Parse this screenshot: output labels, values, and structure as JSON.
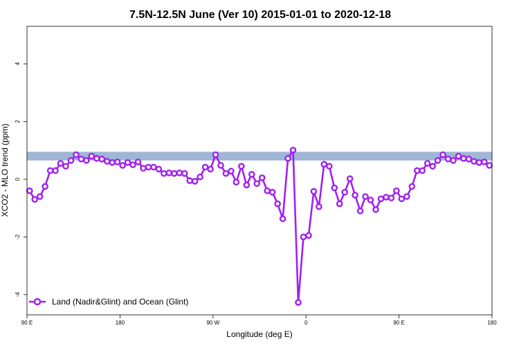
{
  "chart_data": {
    "type": "line",
    "title": "7.5N-12.5N June (Ver 10)   2015-01-01 to 2020-12-18",
    "xlabel": "Longitude (deg E)",
    "ylabel": "XCO2 - MLO trend (ppm)",
    "xlim": [
      90,
      540
    ],
    "ylim": [
      -4.7,
      5.3
    ],
    "x_ticks": [
      {
        "value": 90,
        "label": "90 E"
      },
      {
        "value": 180,
        "label": "180"
      },
      {
        "value": 270,
        "label": "90 W"
      },
      {
        "value": 360,
        "label": "0"
      },
      {
        "value": 450,
        "label": "90 E"
      },
      {
        "value": 540,
        "label": "180"
      }
    ],
    "y_ticks": [
      {
        "value": -4,
        "label": "-4"
      },
      {
        "value": -2,
        "label": "-2"
      },
      {
        "value": 0,
        "label": "0"
      },
      {
        "value": 2,
        "label": "2"
      },
      {
        "value": 4,
        "label": "4"
      }
    ],
    "grid": false,
    "legend_position": "bottom-left",
    "colors": {
      "series": "#a020f0",
      "ocean_band": "#9fb6d6",
      "land": "#f5d36b"
    },
    "land_band": {
      "y_range": [
        0.65,
        0.95
      ],
      "land_segments": []
    },
    "series": [
      {
        "name": "Land (Nadir&Glint) and Ocean (Glint)",
        "x": [
          92.5,
          97.5,
          102.5,
          107.5,
          112.5,
          117.5,
          122.5,
          127.5,
          132.5,
          137.5,
          142.5,
          147.5,
          152.5,
          157.5,
          162.5,
          167.5,
          172.5,
          177.5,
          182.5,
          187.5,
          192.5,
          197.5,
          202.5,
          207.5,
          212.5,
          217.5,
          222.5,
          227.5,
          232.5,
          237.5,
          242.5,
          247.5,
          252.5,
          257.5,
          262.5,
          267.5,
          272.5,
          277.5,
          282.5,
          287.5,
          292.5,
          297.5,
          302.5,
          307.5,
          312.5,
          317.5,
          322.5,
          327.5,
          332.5,
          337.5,
          342.5,
          347.5,
          352.5,
          357.5,
          362.5,
          367.5,
          372.5,
          377.5,
          382.5,
          387.5,
          392.5,
          397.5,
          402.5,
          407.5,
          412.5,
          417.5,
          422.5,
          427.5,
          432.5,
          437.5,
          442.5,
          447.5,
          452.5,
          457.5,
          462.5,
          467.5,
          472.5,
          477.5,
          482.5,
          487.5,
          492.5,
          497.5,
          502.5,
          507.5,
          512.5,
          517.5,
          522.5,
          527.5,
          532.5,
          537.5
        ],
        "y": [
          -0.4,
          -0.7,
          -0.6,
          -0.25,
          0.3,
          0.3,
          0.55,
          0.45,
          0.65,
          0.85,
          0.7,
          0.65,
          0.8,
          0.72,
          0.7,
          0.62,
          0.58,
          0.6,
          0.48,
          0.58,
          0.5,
          0.6,
          0.38,
          0.42,
          0.42,
          0.35,
          0.2,
          0.22,
          0.2,
          0.22,
          0.2,
          -0.05,
          -0.07,
          0.08,
          0.42,
          0.35,
          0.85,
          0.48,
          0.2,
          0.28,
          -0.1,
          0.45,
          -0.2,
          0.17,
          -0.15,
          0.05,
          -0.4,
          -0.45,
          -0.85,
          -1.37,
          0.72,
          1.01,
          -4.27,
          -2.0,
          -1.95,
          -0.42,
          -0.95,
          0.52,
          0.45,
          -0.3,
          -0.85,
          -0.45,
          0.02,
          -0.55,
          -1.1,
          -0.6,
          -0.72,
          -1.05,
          -0.68,
          -0.62,
          -0.65,
          -0.4,
          -0.68,
          -0.6,
          -0.25,
          0.3,
          0.3,
          0.55,
          0.45,
          0.65,
          0.85,
          0.7,
          0.65,
          0.8,
          0.72,
          0.7,
          0.62,
          0.58,
          0.6,
          0.48
        ]
      }
    ]
  }
}
